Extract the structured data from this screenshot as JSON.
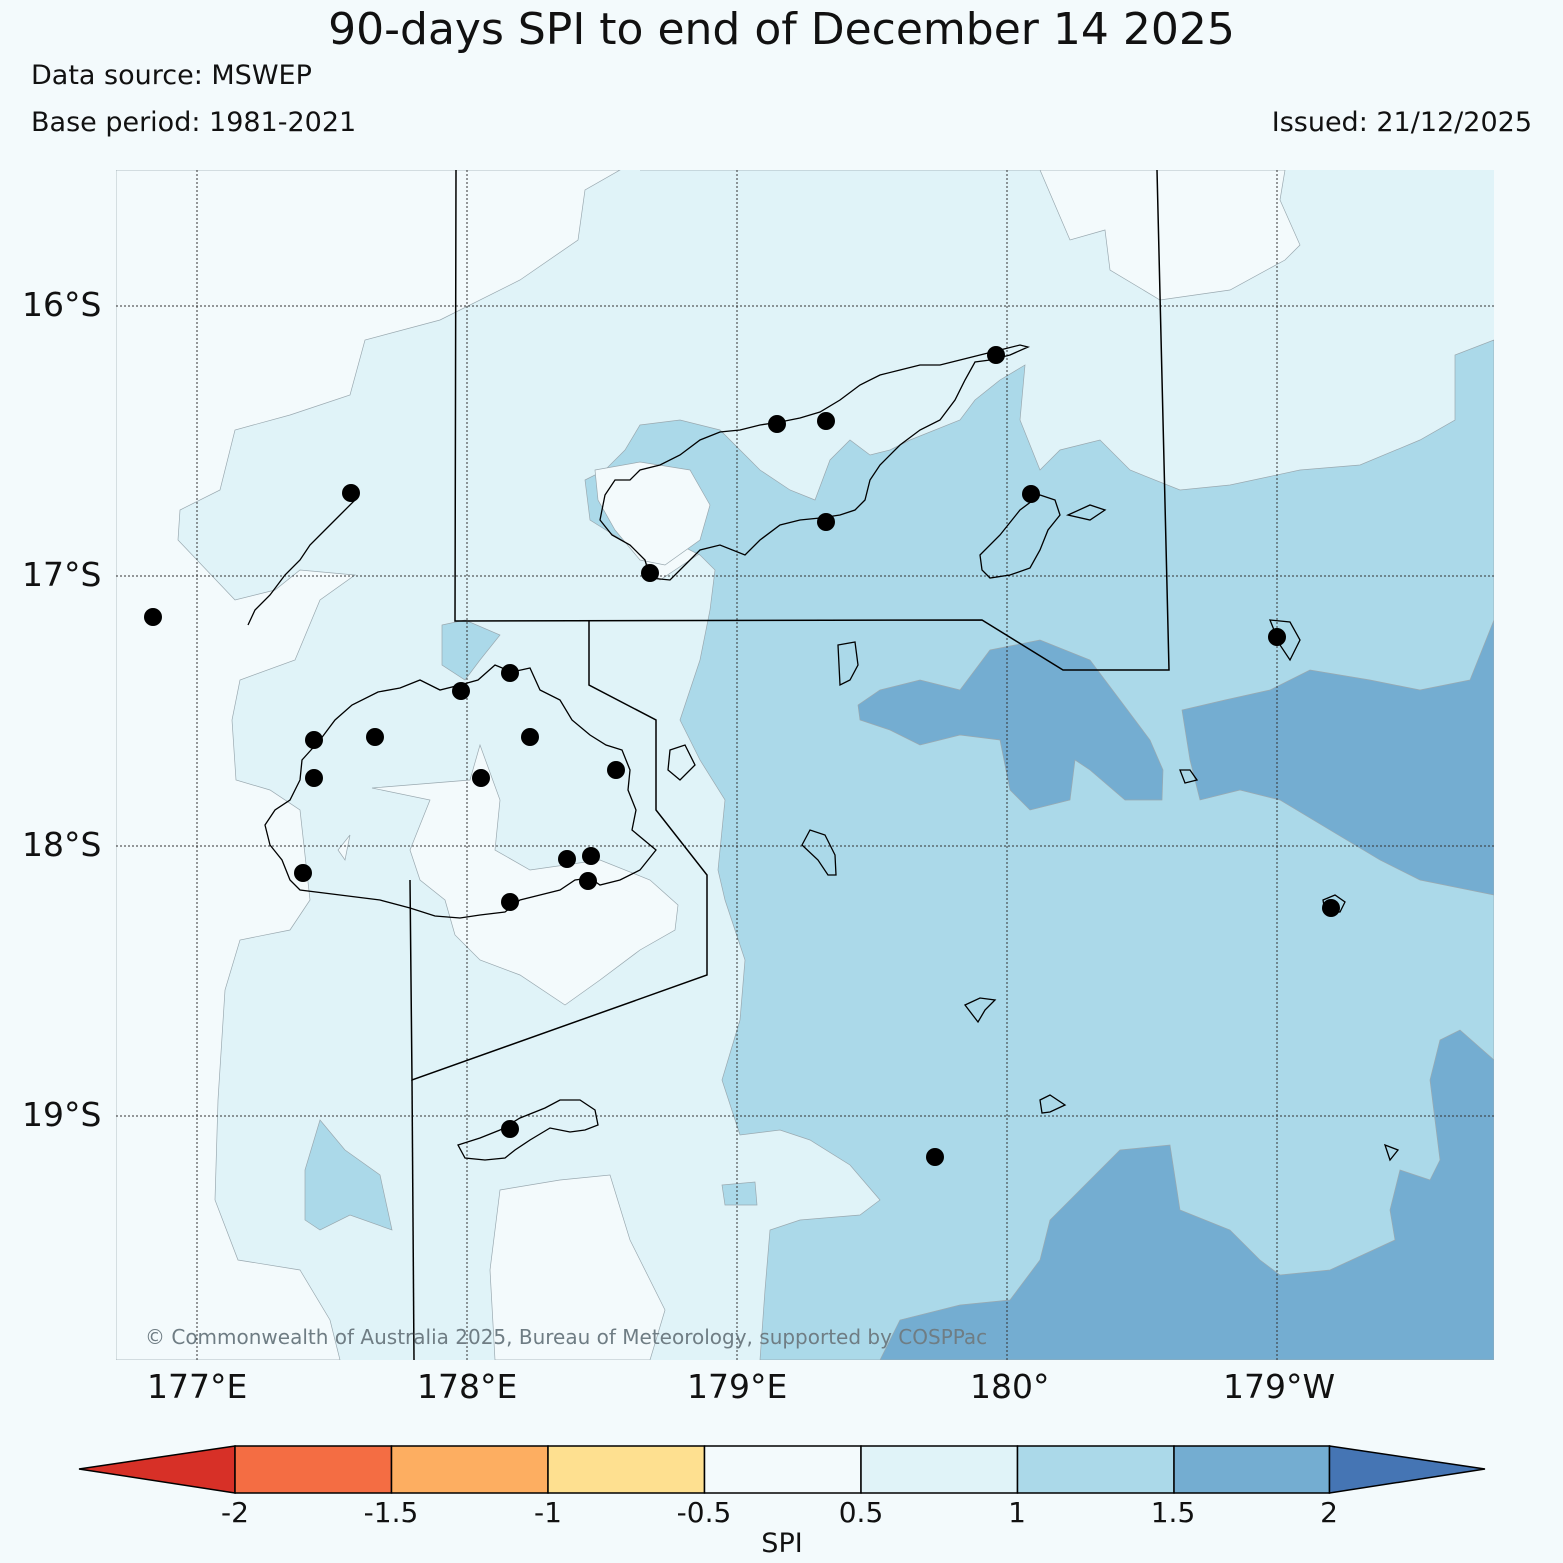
{
  "header": {
    "title": "90-days SPI to end of December 14 2025",
    "data_source": "Data source: MSWEP",
    "base_period": "Base period: 1981-2021",
    "issued": "Issued: 21/12/2025"
  },
  "map": {
    "lat_labels": [
      "16°S",
      "17°S",
      "18°S",
      "19°S"
    ],
    "lon_labels": [
      "177°E",
      "178°E",
      "179°E",
      "180°",
      "179°W"
    ],
    "copyright": "© Commonwealth of Australia 2025, Bureau of Meteorology, supported by COSPPac",
    "station_marker": "black-circle",
    "gridlines": true
  },
  "colorbar": {
    "label": "SPI",
    "ticks": [
      "-2",
      "-1.5",
      "-1",
      "-0.5",
      "0.5",
      "1",
      "1.5",
      "2"
    ],
    "colors": {
      "below_-2": "#d73027",
      "-2_to_-1.5": "#f46d43",
      "-1.5_to_-1": "#fdae61",
      "-1_to_-0.5": "#fee090",
      "-0.5_to_0.5": "#f3fafc",
      "0.5_to_1": "#e0f3f8",
      "1_to_1.5": "#abd9e9",
      "1.5_to_2": "#74add1",
      "above_2": "#4575b4"
    }
  }
}
